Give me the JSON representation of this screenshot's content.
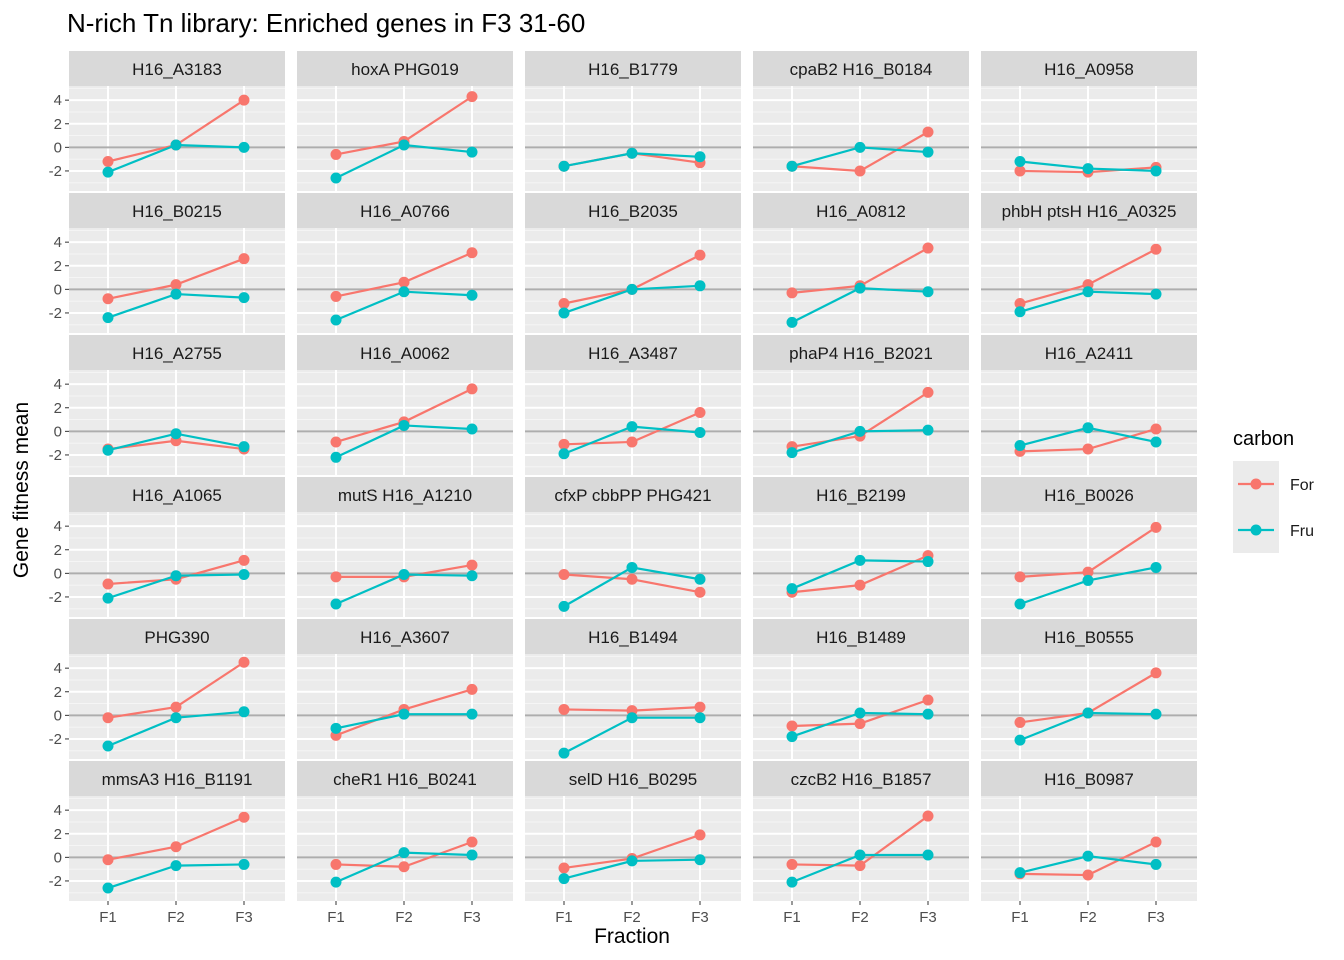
{
  "chart_data": {
    "type": "line",
    "title": "N-rich Tn library: Enriched genes in F3 31-60",
    "xlabel": "Fraction",
    "ylabel": "Gene fitness mean",
    "categories": [
      "F1",
      "F2",
      "F3"
    ],
    "yticks": [
      4,
      2,
      0,
      -2
    ],
    "ylim": [
      -3.7,
      5.2
    ],
    "grid": true,
    "zero_reference_line": true,
    "legend": {
      "title": "carbon",
      "placement": "right",
      "entries": [
        {
          "label": "For",
          "color": "#F8766D"
        },
        {
          "label": "Fru",
          "color": "#00BFC4"
        }
      ]
    },
    "facets": [
      {
        "label": "H16_A3183",
        "series": [
          {
            "name": "For",
            "values": [
              -1.2,
              0.2,
              4.0
            ]
          },
          {
            "name": "Fru",
            "values": [
              -2.1,
              0.2,
              0.0
            ]
          }
        ]
      },
      {
        "label": "hoxA PHG019",
        "series": [
          {
            "name": "For",
            "values": [
              -0.6,
              0.5,
              4.3
            ]
          },
          {
            "name": "Fru",
            "values": [
              -2.6,
              0.2,
              -0.4
            ]
          }
        ]
      },
      {
        "label": "H16_B1779",
        "series": [
          {
            "name": "For",
            "values": [
              -1.6,
              -0.5,
              -1.3
            ]
          },
          {
            "name": "Fru",
            "values": [
              -1.6,
              -0.5,
              -0.8
            ]
          }
        ]
      },
      {
        "label": "cpaB2 H16_B0184",
        "series": [
          {
            "name": "For",
            "values": [
              -1.6,
              -2.0,
              1.3
            ]
          },
          {
            "name": "Fru",
            "values": [
              -1.6,
              0.0,
              -0.4
            ]
          }
        ]
      },
      {
        "label": "H16_A0958",
        "series": [
          {
            "name": "For",
            "values": [
              -2.0,
              -2.1,
              -1.7
            ]
          },
          {
            "name": "Fru",
            "values": [
              -1.2,
              -1.8,
              -2.0
            ]
          }
        ]
      },
      {
        "label": "H16_B0215",
        "series": [
          {
            "name": "For",
            "values": [
              -0.8,
              0.4,
              2.6
            ]
          },
          {
            "name": "Fru",
            "values": [
              -2.4,
              -0.4,
              -0.7
            ]
          }
        ]
      },
      {
        "label": "H16_A0766",
        "series": [
          {
            "name": "For",
            "values": [
              -0.6,
              0.6,
              3.1
            ]
          },
          {
            "name": "Fru",
            "values": [
              -2.6,
              -0.2,
              -0.5
            ]
          }
        ]
      },
      {
        "label": "H16_B2035",
        "series": [
          {
            "name": "For",
            "values": [
              -1.2,
              0.0,
              2.9
            ]
          },
          {
            "name": "Fru",
            "values": [
              -2.0,
              0.0,
              0.3
            ]
          }
        ]
      },
      {
        "label": "H16_A0812",
        "series": [
          {
            "name": "For",
            "values": [
              -0.3,
              0.3,
              3.5
            ]
          },
          {
            "name": "Fru",
            "values": [
              -2.8,
              0.1,
              -0.2
            ]
          }
        ]
      },
      {
        "label": "phbH ptsH H16_A0325",
        "series": [
          {
            "name": "For",
            "values": [
              -1.2,
              0.4,
              3.4
            ]
          },
          {
            "name": "Fru",
            "values": [
              -1.9,
              -0.2,
              -0.4
            ]
          }
        ]
      },
      {
        "label": "H16_A2755",
        "series": [
          {
            "name": "For",
            "values": [
              -1.5,
              -0.8,
              -1.5
            ]
          },
          {
            "name": "Fru",
            "values": [
              -1.6,
              -0.2,
              -1.3
            ]
          }
        ]
      },
      {
        "label": "H16_A0062",
        "series": [
          {
            "name": "For",
            "values": [
              -0.9,
              0.8,
              3.6
            ]
          },
          {
            "name": "Fru",
            "values": [
              -2.2,
              0.5,
              0.2
            ]
          }
        ]
      },
      {
        "label": "H16_A3487",
        "series": [
          {
            "name": "For",
            "values": [
              -1.1,
              -0.9,
              1.6
            ]
          },
          {
            "name": "Fru",
            "values": [
              -1.9,
              0.4,
              -0.1
            ]
          }
        ]
      },
      {
        "label": "phaP4 H16_B2021",
        "series": [
          {
            "name": "For",
            "values": [
              -1.3,
              -0.4,
              3.3
            ]
          },
          {
            "name": "Fru",
            "values": [
              -1.8,
              0.0,
              0.1
            ]
          }
        ]
      },
      {
        "label": "H16_A2411",
        "series": [
          {
            "name": "For",
            "values": [
              -1.7,
              -1.5,
              0.2
            ]
          },
          {
            "name": "Fru",
            "values": [
              -1.2,
              0.3,
              -0.9
            ]
          }
        ]
      },
      {
        "label": "H16_A1065",
        "series": [
          {
            "name": "For",
            "values": [
              -0.9,
              -0.5,
              1.1
            ]
          },
          {
            "name": "Fru",
            "values": [
              -2.1,
              -0.2,
              -0.1
            ]
          }
        ]
      },
      {
        "label": "mutS H16_A1210",
        "series": [
          {
            "name": "For",
            "values": [
              -0.3,
              -0.3,
              0.7
            ]
          },
          {
            "name": "Fru",
            "values": [
              -2.6,
              -0.1,
              -0.2
            ]
          }
        ]
      },
      {
        "label": "cfxP cbbPP PHG421",
        "series": [
          {
            "name": "For",
            "values": [
              -0.1,
              -0.5,
              -1.6
            ]
          },
          {
            "name": "Fru",
            "values": [
              -2.8,
              0.5,
              -0.5
            ]
          }
        ]
      },
      {
        "label": "H16_B2199",
        "series": [
          {
            "name": "For",
            "values": [
              -1.6,
              -1.0,
              1.5
            ]
          },
          {
            "name": "Fru",
            "values": [
              -1.3,
              1.1,
              1.0
            ]
          }
        ]
      },
      {
        "label": "H16_B0026",
        "series": [
          {
            "name": "For",
            "values": [
              -0.3,
              0.1,
              3.9
            ]
          },
          {
            "name": "Fru",
            "values": [
              -2.6,
              -0.6,
              0.5
            ]
          }
        ]
      },
      {
        "label": "PHG390",
        "series": [
          {
            "name": "For",
            "values": [
              -0.2,
              0.7,
              4.5
            ]
          },
          {
            "name": "Fru",
            "values": [
              -2.6,
              -0.2,
              0.3
            ]
          }
        ]
      },
      {
        "label": "H16_A3607",
        "series": [
          {
            "name": "For",
            "values": [
              -1.7,
              0.5,
              2.2
            ]
          },
          {
            "name": "Fru",
            "values": [
              -1.1,
              0.1,
              0.1
            ]
          }
        ]
      },
      {
        "label": "H16_B1494",
        "series": [
          {
            "name": "For",
            "values": [
              0.5,
              0.4,
              0.7
            ]
          },
          {
            "name": "Fru",
            "values": [
              -3.2,
              -0.2,
              -0.2
            ]
          }
        ]
      },
      {
        "label": "H16_B1489",
        "series": [
          {
            "name": "For",
            "values": [
              -0.9,
              -0.7,
              1.3
            ]
          },
          {
            "name": "Fru",
            "values": [
              -1.8,
              0.2,
              0.1
            ]
          }
        ]
      },
      {
        "label": "H16_B0555",
        "series": [
          {
            "name": "For",
            "values": [
              -0.6,
              0.2,
              3.6
            ]
          },
          {
            "name": "Fru",
            "values": [
              -2.1,
              0.2,
              0.1
            ]
          }
        ]
      },
      {
        "label": "mmsA3 H16_B1191",
        "series": [
          {
            "name": "For",
            "values": [
              -0.2,
              0.9,
              3.4
            ]
          },
          {
            "name": "Fru",
            "values": [
              -2.6,
              -0.7,
              -0.6
            ]
          }
        ]
      },
      {
        "label": "cheR1 H16_B0241",
        "series": [
          {
            "name": "For",
            "values": [
              -0.6,
              -0.8,
              1.3
            ]
          },
          {
            "name": "Fru",
            "values": [
              -2.1,
              0.4,
              0.2
            ]
          }
        ]
      },
      {
        "label": "selD H16_B0295",
        "series": [
          {
            "name": "For",
            "values": [
              -0.9,
              -0.1,
              1.9
            ]
          },
          {
            "name": "Fru",
            "values": [
              -1.8,
              -0.3,
              -0.2
            ]
          }
        ]
      },
      {
        "label": "czcB2 H16_B1857",
        "series": [
          {
            "name": "For",
            "values": [
              -0.6,
              -0.7,
              3.5
            ]
          },
          {
            "name": "Fru",
            "values": [
              -2.1,
              0.2,
              0.2
            ]
          }
        ]
      },
      {
        "label": "H16_B0987",
        "series": [
          {
            "name": "For",
            "values": [
              -1.4,
              -1.5,
              1.3
            ]
          },
          {
            "name": "Fru",
            "values": [
              -1.3,
              0.1,
              -0.6
            ]
          }
        ]
      }
    ]
  }
}
